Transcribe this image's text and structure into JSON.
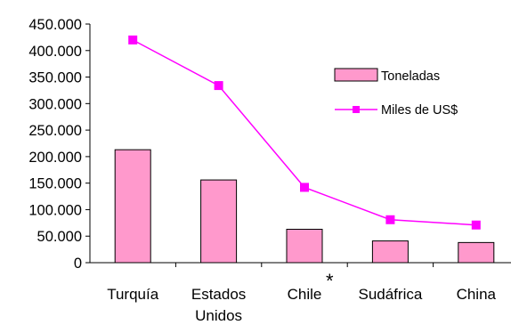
{
  "chart_data": {
    "type": "bar+line",
    "categories": [
      "Turquía",
      "Estados Unidos",
      "Chile",
      "Sudáfrica",
      "China"
    ],
    "category_lines": [
      [
        "Turquía"
      ],
      [
        "Estados",
        "Unidos"
      ],
      [
        "Chile"
      ],
      [
        "Sudáfrica"
      ],
      [
        "China"
      ]
    ],
    "series": [
      {
        "name": "Toneladas",
        "type": "bar",
        "values": [
          213000,
          156000,
          63000,
          41000,
          38000
        ],
        "color": "#ff99cc"
      },
      {
        "name": "Miles de US$",
        "type": "line",
        "values": [
          420000,
          334000,
          142000,
          81000,
          71000
        ],
        "color": "#ff00ff"
      }
    ],
    "yticks": [
      "450.000",
      "400.000",
      "350.000",
      "300.000",
      "250.000",
      "200.000",
      "150.000",
      "100.000",
      "50.000",
      "0"
    ],
    "ylim": [
      0,
      450000
    ],
    "grid": false,
    "legend_position": "right",
    "annotation": {
      "text": "*",
      "category": "Chile"
    }
  }
}
